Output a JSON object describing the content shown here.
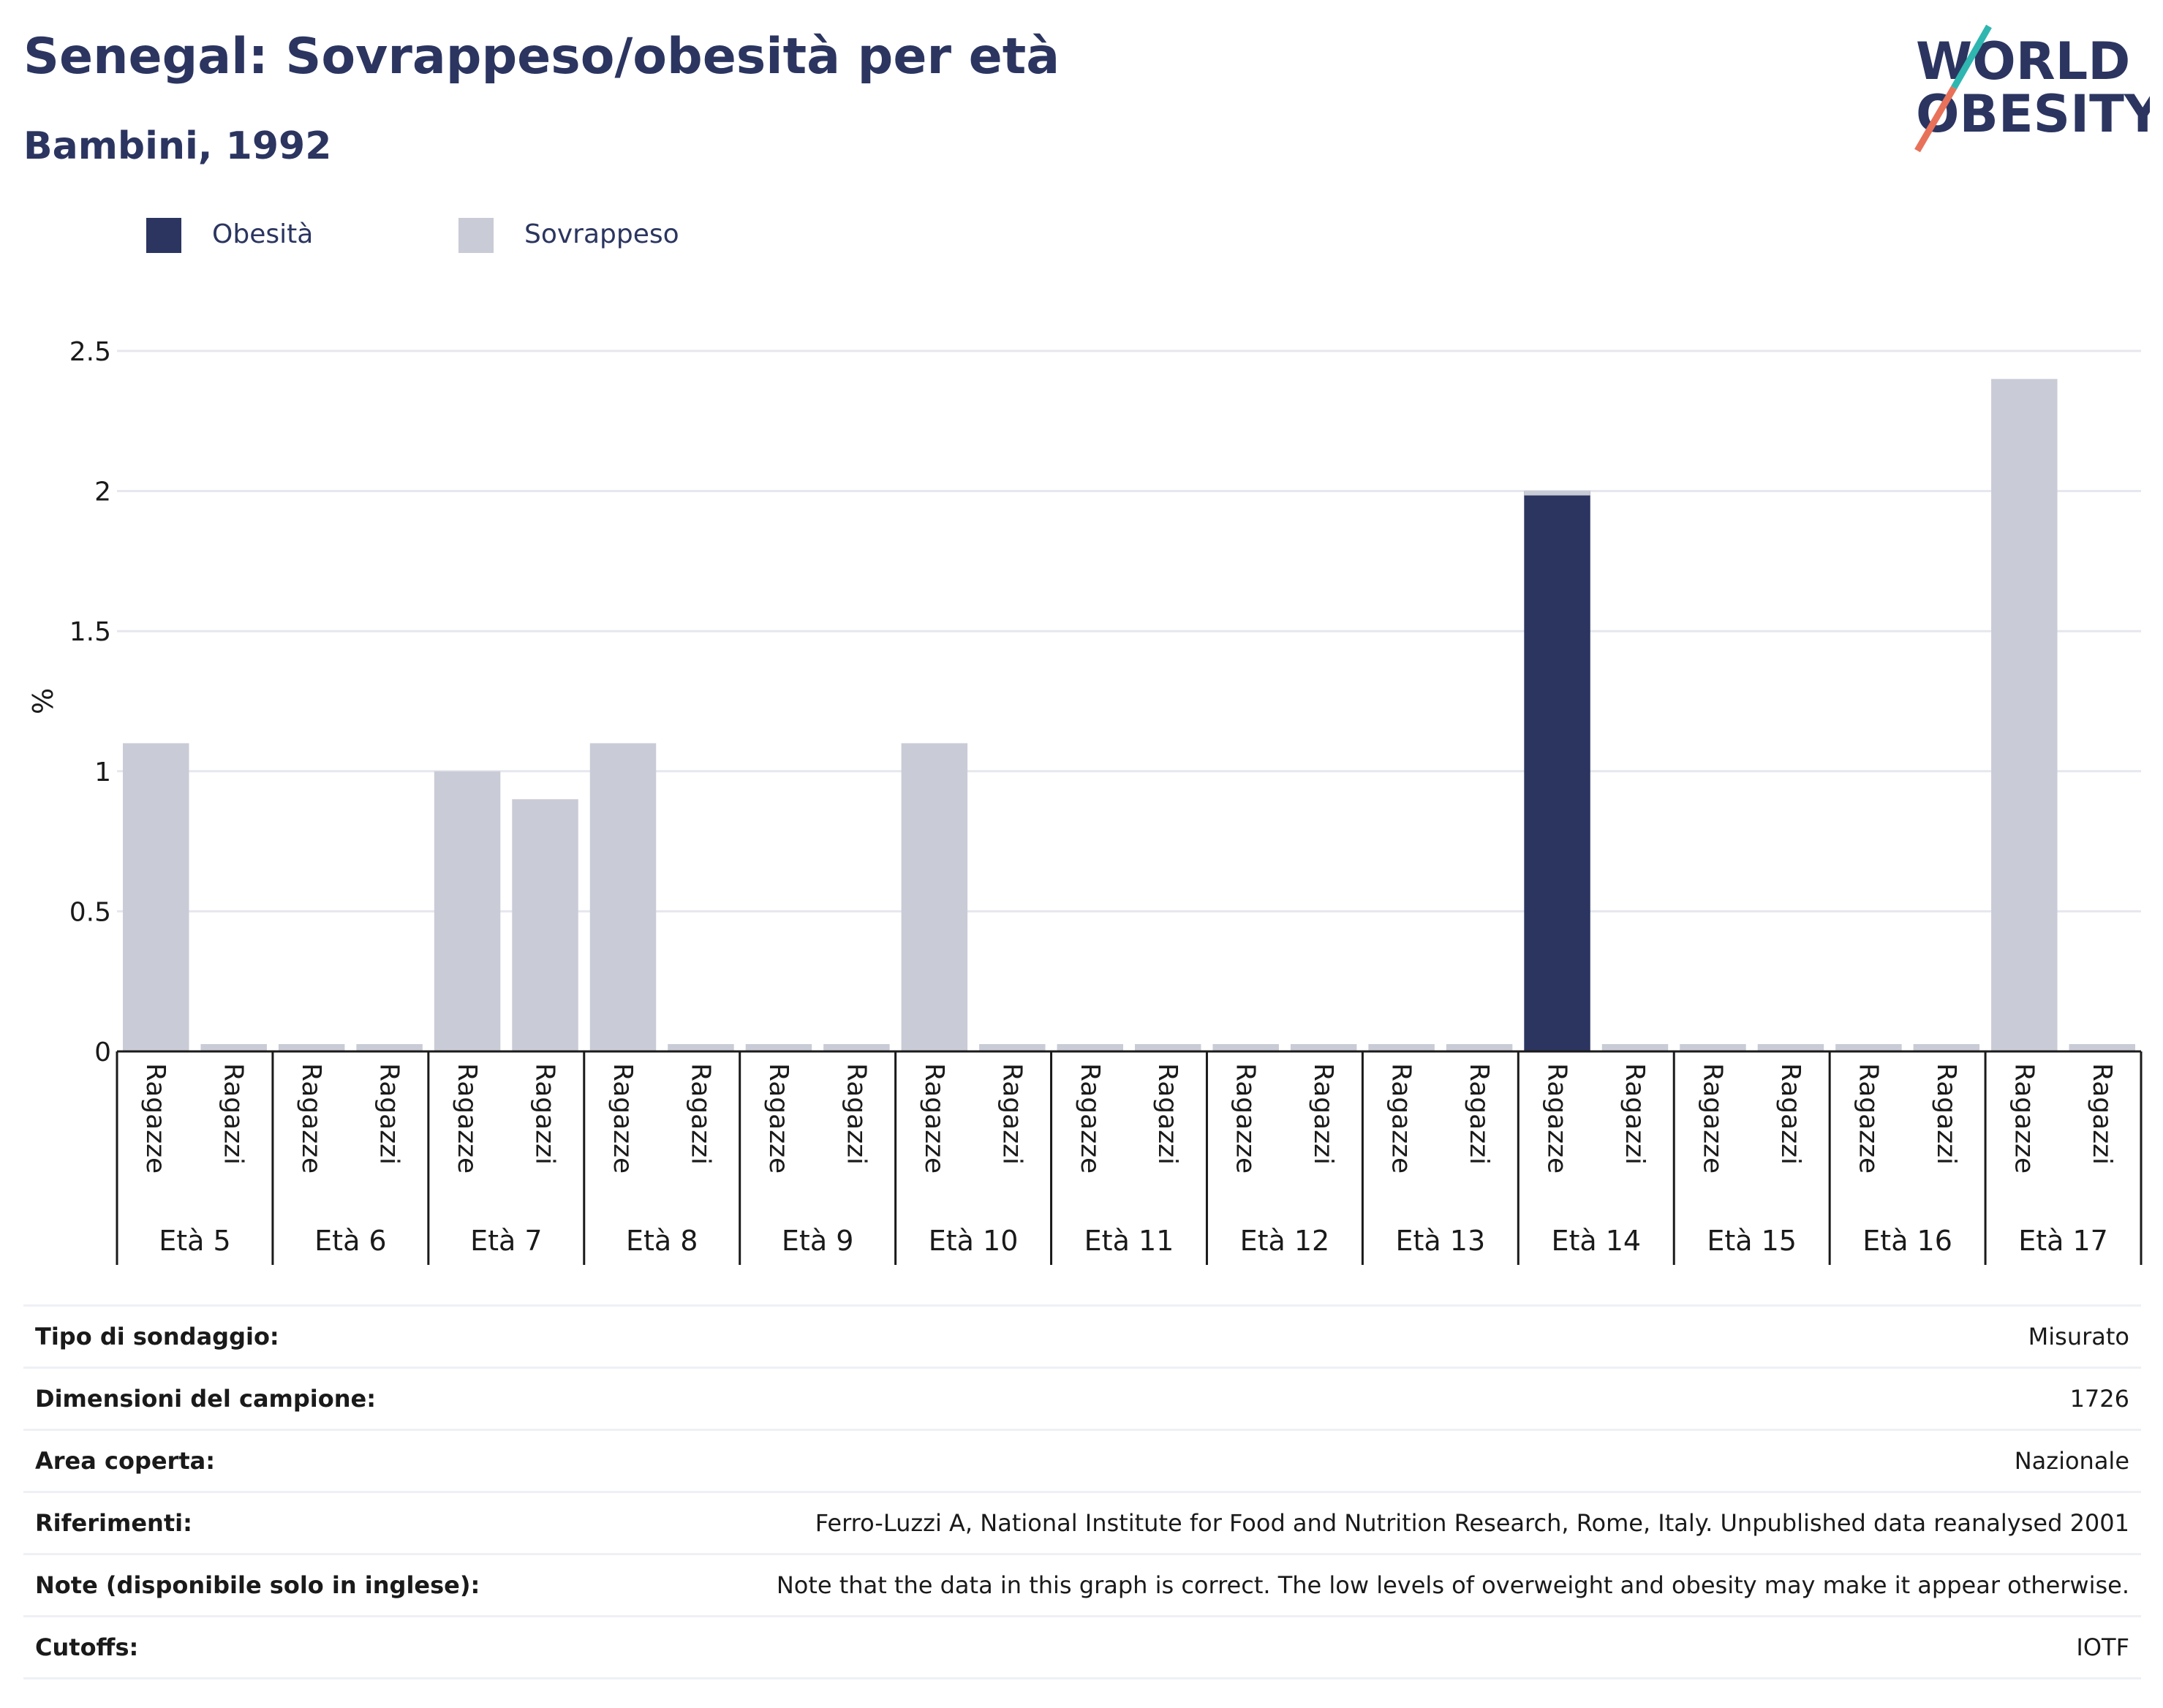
{
  "header": {
    "title": "Senegal: Sovrappeso/obesità per età",
    "subtitle": "Bambini, 1992"
  },
  "logo": {
    "line1": "WORLD",
    "line2": "OBESITY"
  },
  "legend": [
    {
      "label": "Obesità",
      "color": "#2b3560"
    },
    {
      "label": "Sovrappeso",
      "color": "#c9cbd6"
    }
  ],
  "chart_data": {
    "type": "bar",
    "stacked": true,
    "ylabel": "%",
    "ylim": [
      0,
      2.5
    ],
    "yticks": [
      0,
      0.5,
      1,
      1.5,
      2,
      2.5
    ],
    "ytick_labels": [
      "0",
      "0.5",
      "1",
      "1.5",
      "2",
      "2.5"
    ],
    "grid": true,
    "legend_position": "top-left",
    "groups": [
      "Età 5",
      "Età 6",
      "Età 7",
      "Età 8",
      "Età 9",
      "Età 10",
      "Età 11",
      "Età 12",
      "Età 13",
      "Età 14",
      "Età 15",
      "Età 16",
      "Età 17"
    ],
    "subcategories": [
      "Ragazze",
      "Ragazzi"
    ],
    "series": [
      {
        "name": "Obesità",
        "color": "#2b3560",
        "values": [
          0,
          0,
          0,
          0,
          0,
          0,
          0,
          0,
          0,
          0,
          0,
          0,
          0,
          0,
          0,
          0,
          0,
          0,
          2.0,
          0,
          0,
          0,
          0,
          0,
          0,
          0
        ]
      },
      {
        "name": "Sovrappeso",
        "color": "#c9cbd6",
        "values": [
          1.1,
          0,
          0,
          0,
          1.0,
          0.9,
          1.1,
          0,
          0,
          0,
          1.1,
          0,
          0,
          0,
          0,
          0,
          0,
          0,
          0,
          0,
          0,
          0,
          0,
          0,
          2.4,
          0
        ]
      }
    ]
  },
  "info": [
    {
      "key": "Tipo di sondaggio:",
      "value": "Misurato"
    },
    {
      "key": "Dimensioni del campione:",
      "value": "1726"
    },
    {
      "key": "Area coperta:",
      "value": "Nazionale"
    },
    {
      "key": "Riferimenti:",
      "value": "Ferro-Luzzi A, National Institute for Food and Nutrition Research, Rome, Italy. Unpublished data reanalysed 2001"
    },
    {
      "key": "Note (disponibile solo in inglese):",
      "value": "Note that the data in this graph is correct. The low levels of overweight and obesity may make it appear otherwise."
    },
    {
      "key": "Cutoffs:",
      "value": "IOTF"
    }
  ]
}
